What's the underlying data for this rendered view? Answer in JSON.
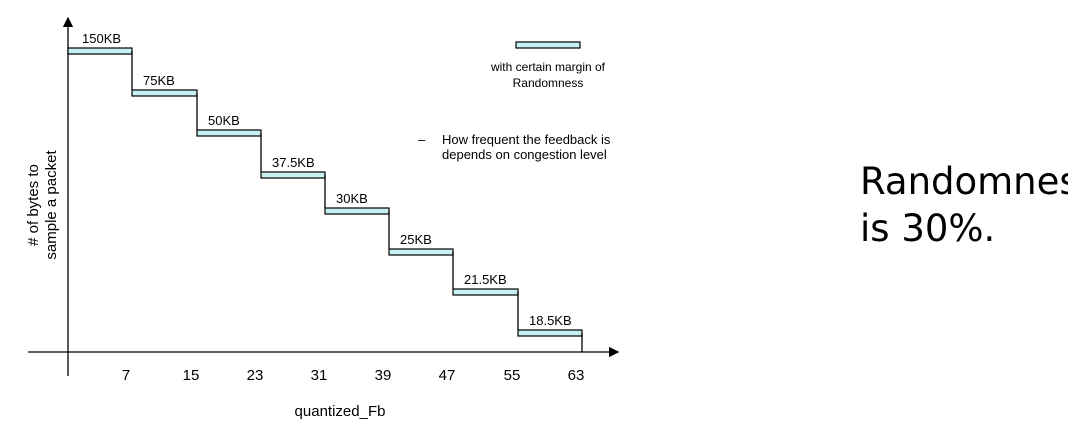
{
  "colors": {
    "band_fill": "#c8f0f0",
    "stroke": "#000000"
  },
  "axes": {
    "y_title_lines": [
      "# of bytes to",
      "sample a packet"
    ],
    "x_title": "quantized_Fb",
    "x_ticks": [
      "7",
      "15",
      "23",
      "31",
      "39",
      "47",
      "55",
      "63"
    ]
  },
  "steps": [
    {
      "label": "150KB"
    },
    {
      "label": "75KB"
    },
    {
      "label": "50KB"
    },
    {
      "label": "37.5KB"
    },
    {
      "label": "30KB"
    },
    {
      "label": "25KB"
    },
    {
      "label": "21.5KB"
    },
    {
      "label": "18.5KB"
    }
  ],
  "legend": {
    "text_lines": [
      "with certain margin of",
      "Randomness"
    ]
  },
  "note": {
    "bullet": "–",
    "lines": [
      "How frequent the feedback is",
      "depends on congestion level"
    ]
  },
  "side_note": {
    "lines": [
      "Randomness",
      "is 30%."
    ]
  }
}
